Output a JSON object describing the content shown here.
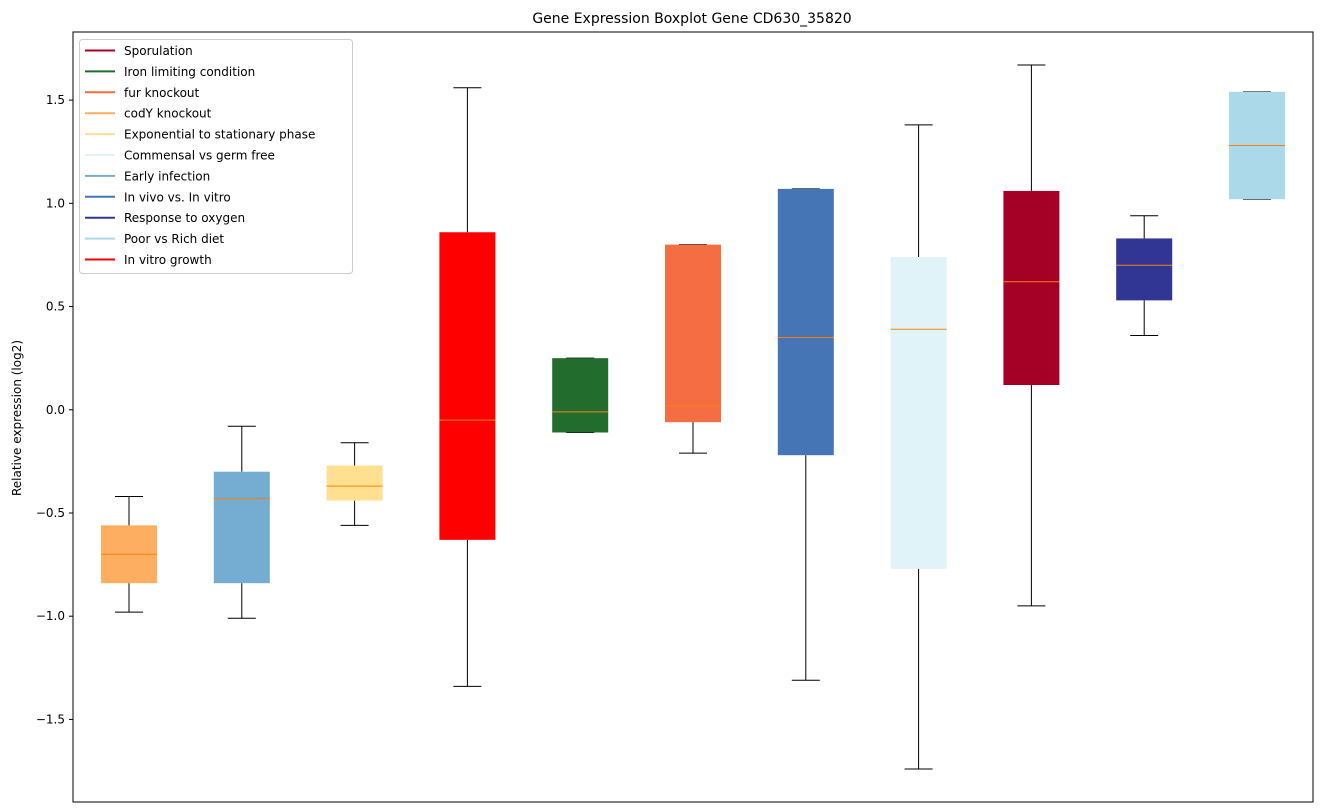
{
  "chart_data": {
    "type": "boxplot",
    "title": "Gene Expression Boxplot Gene CD630_35820",
    "xlabel": "",
    "ylabel": "Relative expression (log2)",
    "ylim": [
      -1.9,
      1.83
    ],
    "yticks": [
      -1.5,
      -1.0,
      -0.5,
      0.0,
      0.5,
      1.0,
      1.5
    ],
    "ytick_labels": [
      "−1.5",
      "−1.0",
      "−0.5",
      "0.0",
      "0.5",
      "1.0",
      "1.5"
    ],
    "grid": false,
    "legend_position": "top-left",
    "legend": [
      {
        "label": "Sporulation",
        "color": "#a50026"
      },
      {
        "label": "Iron limiting condition",
        "color": "#226d2e"
      },
      {
        "label": "fur knockout",
        "color": "#f46d43"
      },
      {
        "label": "codY knockout",
        "color": "#fdae61"
      },
      {
        "label": "Exponential to stationary phase",
        "color": "#fee090"
      },
      {
        "label": "Commensal vs germ free",
        "color": "#e0f3f8"
      },
      {
        "label": "Early infection",
        "color": "#74add1"
      },
      {
        "label": "In vivo vs. In vitro",
        "color": "#4575b4"
      },
      {
        "label": "Response to oxygen",
        "color": "#313695"
      },
      {
        "label": "Poor vs Rich diet",
        "color": "#abd9e9"
      },
      {
        "label": "In vitro growth",
        "color": "#ff0000"
      }
    ],
    "boxes": [
      {
        "group": "codY knockout",
        "color": "#fdae61",
        "whislo": -0.98,
        "q1": -0.84,
        "med": -0.7,
        "q3": -0.56,
        "whishi": -0.42
      },
      {
        "group": "Early infection",
        "color": "#74add1",
        "whislo": -1.01,
        "q1": -0.84,
        "med": -0.43,
        "q3": -0.3,
        "whishi": -0.08
      },
      {
        "group": "Exponential to stationary phase",
        "color": "#fee090",
        "whislo": -0.56,
        "q1": -0.44,
        "med": -0.37,
        "q3": -0.27,
        "whishi": -0.16
      },
      {
        "group": "In vitro growth",
        "color": "#ff0000",
        "whislo": -1.34,
        "q1": -0.63,
        "med": -0.05,
        "q3": 0.86,
        "whishi": 1.56
      },
      {
        "group": "Iron limiting condition",
        "color": "#226d2e",
        "whislo": -0.11,
        "q1": -0.11,
        "med": -0.01,
        "q3": 0.25,
        "whishi": 0.25
      },
      {
        "group": "fur knockout",
        "color": "#f46d43",
        "whislo": -0.21,
        "q1": -0.06,
        "med": 0.02,
        "q3": 0.8,
        "whishi": 0.8
      },
      {
        "group": "In vivo vs. In vitro",
        "color": "#4575b4",
        "whislo": -1.31,
        "q1": -0.22,
        "med": 0.35,
        "q3": 1.07,
        "whishi": 1.07
      },
      {
        "group": "Commensal vs germ free",
        "color": "#e0f3f8",
        "whislo": -1.74,
        "q1": -0.77,
        "med": 0.39,
        "q3": 0.74,
        "whishi": 1.38
      },
      {
        "group": "Sporulation",
        "color": "#a50026",
        "whislo": -0.95,
        "q1": 0.12,
        "med": 0.62,
        "q3": 1.06,
        "whishi": 1.67
      },
      {
        "group": "Response to oxygen",
        "color": "#313695",
        "whislo": 0.36,
        "q1": 0.53,
        "med": 0.7,
        "q3": 0.83,
        "whishi": 0.94
      },
      {
        "group": "Poor vs Rich diet",
        "color": "#abd9e9",
        "whislo": 1.02,
        "q1": 1.02,
        "med": 1.28,
        "q3": 1.54,
        "whishi": 1.54
      }
    ],
    "median_color": "#ff7f0e"
  }
}
